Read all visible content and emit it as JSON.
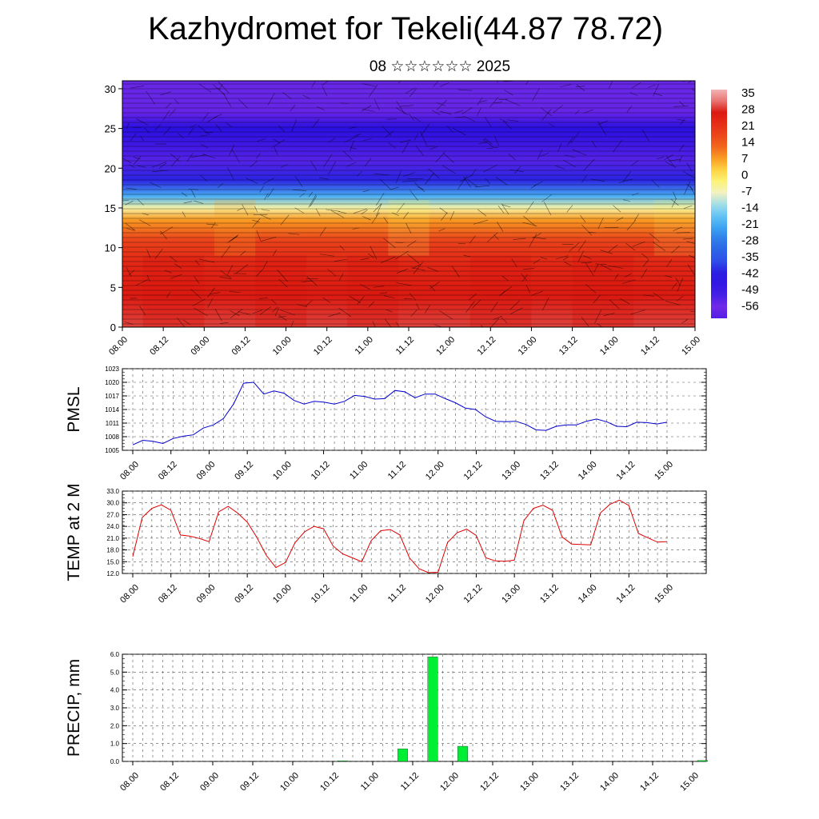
{
  "title": "Kazhydromet for Tekeli(44.87 78.72)",
  "subtitle": "08 ☆☆☆☆☆☆ 2025",
  "time_labels": [
    "08.00",
    "08.12",
    "09.00",
    "09.12",
    "10.00",
    "10.12",
    "11.00",
    "11.12",
    "12.00",
    "12.12",
    "13.00",
    "13.12",
    "14.00",
    "14.12",
    "15.00"
  ],
  "chart_data": [
    {
      "type": "heatmap",
      "name": "cross-section",
      "x_ticks": [
        "08.00",
        "08.12",
        "09.00",
        "09.12",
        "10.00",
        "10.12",
        "11.00",
        "11.12",
        "12.00",
        "12.12",
        "13.00",
        "13.12",
        "14.00",
        "14.12",
        "15.00"
      ],
      "y_ticks": [
        0,
        5,
        10,
        15,
        20,
        25,
        30
      ],
      "ylim": [
        0,
        31
      ],
      "colorbar_labels": [
        "35",
        "28",
        "21",
        "14",
        "7",
        "0",
        "-7",
        "-14",
        "-21",
        "-28",
        "-35",
        "-42",
        "-49",
        "-56"
      ],
      "temperature_profile_by_height": [
        [
          0,
          30
        ],
        [
          4,
          27
        ],
        [
          8,
          24
        ],
        [
          11,
          18
        ],
        [
          13.5,
          8
        ],
        [
          15,
          -5
        ],
        [
          16.5,
          -20
        ],
        [
          18.5,
          -40
        ],
        [
          21,
          -52
        ],
        [
          23,
          -62
        ],
        [
          25,
          -64
        ],
        [
          27,
          -58
        ],
        [
          29,
          -54
        ],
        [
          31,
          -54
        ]
      ],
      "colors": {
        "hot": "#d9160f",
        "warm": "#f05a1c",
        "mild": "#fba523",
        "yellow": "#fff45a",
        "cool": "#7ad4f7",
        "cold": "#2a72e5",
        "frigid": "#2a10e0",
        "top": "#7a2ae8"
      }
    },
    {
      "type": "line",
      "name": "pmsl",
      "ylabel": "PMSL",
      "yticks": [
        1005,
        1008,
        1011,
        1014,
        1017,
        1020,
        1023
      ],
      "ylim": [
        1005,
        1023
      ],
      "color": "#0000cc",
      "values": [
        1006.2,
        1007.2,
        1007.0,
        1006.5,
        1007.6,
        1008.1,
        1008.4,
        1009.9,
        1010.6,
        1012.0,
        1015.2,
        1019.8,
        1020.0,
        1017.4,
        1018.1,
        1017.6,
        1016.0,
        1015.2,
        1015.8,
        1015.6,
        1015.2,
        1015.8,
        1017.1,
        1016.9,
        1016.3,
        1016.4,
        1018.2,
        1017.9,
        1016.6,
        1017.4,
        1017.4,
        1016.4,
        1015.5,
        1014.3,
        1014.0,
        1012.4,
        1011.4,
        1011.3,
        1011.4,
        1010.7,
        1009.5,
        1009.4,
        1010.3,
        1010.6,
        1010.6,
        1011.4,
        1011.9,
        1011.3,
        1010.3,
        1010.2,
        1011.2,
        1011.1,
        1010.8,
        1011.2
      ]
    },
    {
      "type": "line",
      "name": "temp2m",
      "ylabel": "TEMP at 2 M",
      "yticks": [
        "12.0",
        "15.0",
        "18.0",
        "21.0",
        "24.0",
        "27.0",
        "30.0",
        "33.0"
      ],
      "ylim": [
        12,
        33
      ],
      "color": "#dd0000",
      "values": [
        16.3,
        26.3,
        28.6,
        29.5,
        28.1,
        21.8,
        21.5,
        20.9,
        20.1,
        27.7,
        29.1,
        27.4,
        25.1,
        21.2,
        16.6,
        13.5,
        14.8,
        19.8,
        22.6,
        24.0,
        23.4,
        19.0,
        17.0,
        16.0,
        15.0,
        20.4,
        22.9,
        23.2,
        21.8,
        16.0,
        13.2,
        12.2,
        12.3,
        19.9,
        22.4,
        23.3,
        21.7,
        16.0,
        15.2,
        15.1,
        15.4,
        25.5,
        28.6,
        29.4,
        28.1,
        21.3,
        19.5,
        19.4,
        19.3,
        27.4,
        29.6,
        30.7,
        29.3,
        22.2,
        21.1,
        20.0,
        20.1
      ]
    },
    {
      "type": "bar",
      "name": "precip",
      "ylabel": "PRECIP, mm",
      "yticks": [
        "0.0",
        "1.0",
        "2.0",
        "3.0",
        "4.0",
        "5.0",
        "6.0"
      ],
      "ylim": [
        0,
        6
      ],
      "color": "#00ee33",
      "bars": [
        {
          "t": 21.0,
          "value": 0.03
        },
        {
          "t": 27.0,
          "value": 0.7
        },
        {
          "t": 30.0,
          "value": 5.85
        },
        {
          "t": 33.0,
          "value": 0.85
        },
        {
          "t": 57.0,
          "value": 0.05
        }
      ]
    }
  ]
}
